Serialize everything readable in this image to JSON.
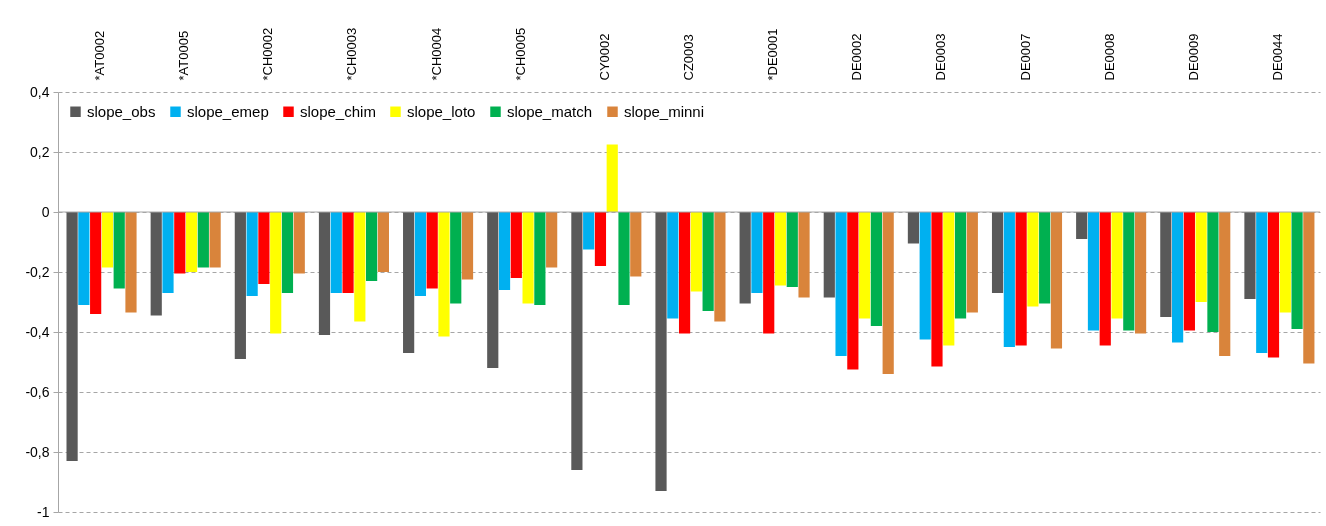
{
  "chart_data": {
    "type": "bar",
    "categories": [
      "*AT0002",
      "*AT0005",
      "*CH0002",
      "*CH0003",
      "*CH0004",
      "*CH0005",
      "CY0002",
      "CZ0003",
      "*DE0001",
      "DE0002",
      "DE0003",
      "DE0007",
      "DE0008",
      "DE0009",
      "DE0044"
    ],
    "series": [
      {
        "name": "slope_obs",
        "color": "#595959",
        "values": [
          -0.83,
          -0.345,
          -0.49,
          -0.41,
          -0.47,
          -0.52,
          -0.86,
          -0.93,
          -0.305,
          -0.285,
          -0.105,
          -0.27,
          -0.09,
          -0.35,
          -0.29
        ]
      },
      {
        "name": "slope_emep",
        "color": "#00b0f0",
        "values": [
          -0.31,
          -0.27,
          -0.28,
          -0.27,
          -0.28,
          -0.26,
          -0.125,
          -0.355,
          -0.27,
          -0.48,
          -0.425,
          -0.45,
          -0.395,
          -0.435,
          -0.47
        ]
      },
      {
        "name": "slope_chim",
        "color": "#ff0000",
        "values": [
          -0.34,
          -0.205,
          -0.24,
          -0.27,
          -0.255,
          -0.22,
          -0.18,
          -0.405,
          -0.405,
          -0.525,
          -0.515,
          -0.445,
          -0.445,
          -0.395,
          -0.485
        ]
      },
      {
        "name": "slope_loto",
        "color": "#ffff00",
        "values": [
          -0.185,
          -0.2,
          -0.405,
          -0.365,
          -0.415,
          -0.305,
          0.225,
          -0.265,
          -0.245,
          -0.355,
          -0.445,
          -0.315,
          -0.355,
          -0.3,
          -0.335
        ]
      },
      {
        "name": "slope_match",
        "color": "#00b050",
        "values": [
          -0.255,
          -0.185,
          -0.27,
          -0.23,
          -0.305,
          -0.31,
          -0.31,
          -0.33,
          -0.25,
          -0.38,
          -0.355,
          -0.305,
          -0.395,
          -0.4,
          -0.39
        ]
      },
      {
        "name": "slope_minni",
        "color": "#d9843b",
        "values": [
          -0.335,
          -0.185,
          -0.205,
          -0.2,
          -0.225,
          -0.185,
          -0.215,
          -0.365,
          -0.285,
          -0.54,
          -0.335,
          -0.455,
          -0.405,
          -0.48,
          -0.505
        ]
      }
    ],
    "ylim": [
      -1,
      0.4
    ],
    "yticks": [
      {
        "value": -1,
        "label": "-1"
      },
      {
        "value": -0.8,
        "label": "-0,8"
      },
      {
        "value": -0.6,
        "label": "-0,6"
      },
      {
        "value": -0.4,
        "label": "-0,4"
      },
      {
        "value": -0.2,
        "label": "-0,2"
      },
      {
        "value": 0,
        "label": "0"
      },
      {
        "value": 0.2,
        "label": "0,2"
      },
      {
        "value": 0.4,
        "label": "0,4"
      }
    ],
    "grid": "y",
    "legend": "top left"
  }
}
